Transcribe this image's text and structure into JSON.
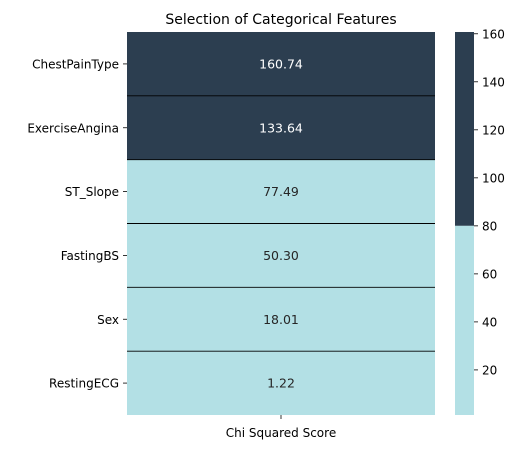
{
  "chart_data": {
    "type": "heatmap",
    "title": "Selection of Categorical Features",
    "xlabel": "",
    "ylabel": "",
    "columns": [
      "Chi Squared Score"
    ],
    "rows": [
      "ChestPainType",
      "ExerciseAngina",
      "ST_Slope",
      "FastingBS",
      "Sex",
      "RestingECG"
    ],
    "values": [
      160.74,
      133.64,
      77.49,
      50.3,
      18.01,
      1.22
    ],
    "value_labels": [
      "160.74",
      "133.64",
      "77.49",
      "50.30",
      "18.01",
      "1.22"
    ],
    "colormap": {
      "type": "two-color",
      "threshold": 80,
      "low_color": "#b3e0e5",
      "high_color": "#2c3e50",
      "low_text_color": "#262626",
      "high_text_color": "#ffffff"
    },
    "colorbar": {
      "min": 1.22,
      "max": 160.74,
      "ticks": [
        20,
        40,
        60,
        80,
        100,
        120,
        140,
        160
      ]
    },
    "cell_border_color": "#000000"
  }
}
